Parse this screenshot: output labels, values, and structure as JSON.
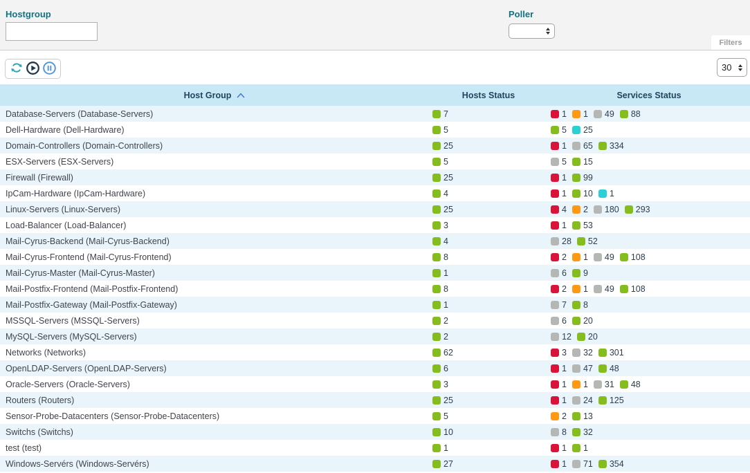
{
  "filters": {
    "hostgroup_label": "Hostgroup",
    "hostgroup_value": "",
    "poller_label": "Poller",
    "poller_value": "",
    "tab_label": "Filters"
  },
  "toolbar": {
    "icons": [
      "refresh-icon",
      "play-icon",
      "pause-icon"
    ],
    "page_size": "30"
  },
  "table": {
    "columns": [
      "Host Group",
      "Hosts Status",
      "Services Status"
    ],
    "sort_column": "Host Group",
    "sort_direction": "asc"
  },
  "colors": {
    "critical": "#d9143a",
    "warning": "#ff9913",
    "unknown": "#b4b7b4",
    "ok": "#85bd1e",
    "pending": "#2ad1d4",
    "accent_teal": "#15707f",
    "header_bg": "#c8e8f5",
    "row_alt_bg": "#e9f4fb"
  },
  "rows": [
    {
      "name": "Database-Servers (Database-Servers)",
      "hosts": [
        {
          "status": "ok",
          "count": 7
        }
      ],
      "services": [
        {
          "status": "critical",
          "count": 1
        },
        {
          "status": "warning",
          "count": 1
        },
        {
          "status": "unknown",
          "count": 49
        },
        {
          "status": "ok",
          "count": 88
        }
      ]
    },
    {
      "name": "Dell-Hardware (Dell-Hardware)",
      "hosts": [
        {
          "status": "ok",
          "count": 5
        }
      ],
      "services": [
        {
          "status": "ok",
          "count": 5
        },
        {
          "status": "pending",
          "count": 25
        }
      ]
    },
    {
      "name": "Domain-Controllers (Domain-Controllers)",
      "hosts": [
        {
          "status": "ok",
          "count": 25
        }
      ],
      "services": [
        {
          "status": "critical",
          "count": 1
        },
        {
          "status": "unknown",
          "count": 65
        },
        {
          "status": "ok",
          "count": 334
        }
      ]
    },
    {
      "name": "ESX-Servers (ESX-Servers)",
      "hosts": [
        {
          "status": "ok",
          "count": 5
        }
      ],
      "services": [
        {
          "status": "unknown",
          "count": 5
        },
        {
          "status": "ok",
          "count": 15
        }
      ]
    },
    {
      "name": "Firewall (Firewall)",
      "hosts": [
        {
          "status": "ok",
          "count": 25
        }
      ],
      "services": [
        {
          "status": "critical",
          "count": 1
        },
        {
          "status": "ok",
          "count": 99
        }
      ]
    },
    {
      "name": "IpCam-Hardware (IpCam-Hardware)",
      "hosts": [
        {
          "status": "ok",
          "count": 4
        }
      ],
      "services": [
        {
          "status": "critical",
          "count": 1
        },
        {
          "status": "ok",
          "count": 10
        },
        {
          "status": "pending",
          "count": 1
        }
      ]
    },
    {
      "name": "Linux-Servers (Linux-Servers)",
      "hosts": [
        {
          "status": "ok",
          "count": 25
        }
      ],
      "services": [
        {
          "status": "critical",
          "count": 4
        },
        {
          "status": "warning",
          "count": 2
        },
        {
          "status": "unknown",
          "count": 180
        },
        {
          "status": "ok",
          "count": 293
        }
      ]
    },
    {
      "name": "Load-Balancer (Load-Balancer)",
      "hosts": [
        {
          "status": "ok",
          "count": 3
        }
      ],
      "services": [
        {
          "status": "critical",
          "count": 1
        },
        {
          "status": "ok",
          "count": 53
        }
      ]
    },
    {
      "name": "Mail-Cyrus-Backend (Mail-Cyrus-Backend)",
      "hosts": [
        {
          "status": "ok",
          "count": 4
        }
      ],
      "services": [
        {
          "status": "unknown",
          "count": 28
        },
        {
          "status": "ok",
          "count": 52
        }
      ]
    },
    {
      "name": "Mail-Cyrus-Frontend (Mail-Cyrus-Frontend)",
      "hosts": [
        {
          "status": "ok",
          "count": 8
        }
      ],
      "services": [
        {
          "status": "critical",
          "count": 2
        },
        {
          "status": "warning",
          "count": 1
        },
        {
          "status": "unknown",
          "count": 49
        },
        {
          "status": "ok",
          "count": 108
        }
      ]
    },
    {
      "name": "Mail-Cyrus-Master (Mail-Cyrus-Master)",
      "hosts": [
        {
          "status": "ok",
          "count": 1
        }
      ],
      "services": [
        {
          "status": "unknown",
          "count": 6
        },
        {
          "status": "ok",
          "count": 9
        }
      ]
    },
    {
      "name": "Mail-Postfix-Frontend (Mail-Postfix-Frontend)",
      "hosts": [
        {
          "status": "ok",
          "count": 8
        }
      ],
      "services": [
        {
          "status": "critical",
          "count": 2
        },
        {
          "status": "warning",
          "count": 1
        },
        {
          "status": "unknown",
          "count": 49
        },
        {
          "status": "ok",
          "count": 108
        }
      ]
    },
    {
      "name": "Mail-Postfix-Gateway (Mail-Postfix-Gateway)",
      "hosts": [
        {
          "status": "ok",
          "count": 1
        }
      ],
      "services": [
        {
          "status": "unknown",
          "count": 7
        },
        {
          "status": "ok",
          "count": 8
        }
      ]
    },
    {
      "name": "MSSQL-Servers (MSSQL-Servers)",
      "hosts": [
        {
          "status": "ok",
          "count": 2
        }
      ],
      "services": [
        {
          "status": "unknown",
          "count": 6
        },
        {
          "status": "ok",
          "count": 20
        }
      ]
    },
    {
      "name": "MySQL-Servers (MySQL-Servers)",
      "hosts": [
        {
          "status": "ok",
          "count": 2
        }
      ],
      "services": [
        {
          "status": "unknown",
          "count": 12
        },
        {
          "status": "ok",
          "count": 20
        }
      ]
    },
    {
      "name": "Networks (Networks)",
      "hosts": [
        {
          "status": "ok",
          "count": 62
        }
      ],
      "services": [
        {
          "status": "critical",
          "count": 3
        },
        {
          "status": "unknown",
          "count": 32
        },
        {
          "status": "ok",
          "count": 301
        }
      ]
    },
    {
      "name": "OpenLDAP-Servers (OpenLDAP-Servers)",
      "hosts": [
        {
          "status": "ok",
          "count": 6
        }
      ],
      "services": [
        {
          "status": "critical",
          "count": 1
        },
        {
          "status": "unknown",
          "count": 47
        },
        {
          "status": "ok",
          "count": 48
        }
      ]
    },
    {
      "name": "Oracle-Servers (Oracle-Servers)",
      "hosts": [
        {
          "status": "ok",
          "count": 3
        }
      ],
      "services": [
        {
          "status": "critical",
          "count": 1
        },
        {
          "status": "warning",
          "count": 1
        },
        {
          "status": "unknown",
          "count": 31
        },
        {
          "status": "ok",
          "count": 48
        }
      ]
    },
    {
      "name": "Routers (Routers)",
      "hosts": [
        {
          "status": "ok",
          "count": 25
        }
      ],
      "services": [
        {
          "status": "critical",
          "count": 1
        },
        {
          "status": "unknown",
          "count": 24
        },
        {
          "status": "ok",
          "count": 125
        }
      ]
    },
    {
      "name": "Sensor-Probe-Datacenters (Sensor-Probe-Datacenters)",
      "hosts": [
        {
          "status": "ok",
          "count": 5
        }
      ],
      "services": [
        {
          "status": "warning",
          "count": 2
        },
        {
          "status": "ok",
          "count": 13
        }
      ]
    },
    {
      "name": "Switchs (Switchs)",
      "hosts": [
        {
          "status": "ok",
          "count": 10
        }
      ],
      "services": [
        {
          "status": "unknown",
          "count": 8
        },
        {
          "status": "ok",
          "count": 32
        }
      ]
    },
    {
      "name": "test (test)",
      "hosts": [
        {
          "status": "ok",
          "count": 1
        }
      ],
      "services": [
        {
          "status": "critical",
          "count": 1
        },
        {
          "status": "ok",
          "count": 1
        }
      ]
    },
    {
      "name": "Windows-Servérs (Windows-Servérs)",
      "hosts": [
        {
          "status": "ok",
          "count": 27
        }
      ],
      "services": [
        {
          "status": "critical",
          "count": 1
        },
        {
          "status": "unknown",
          "count": 71
        },
        {
          "status": "ok",
          "count": 354
        }
      ]
    }
  ]
}
